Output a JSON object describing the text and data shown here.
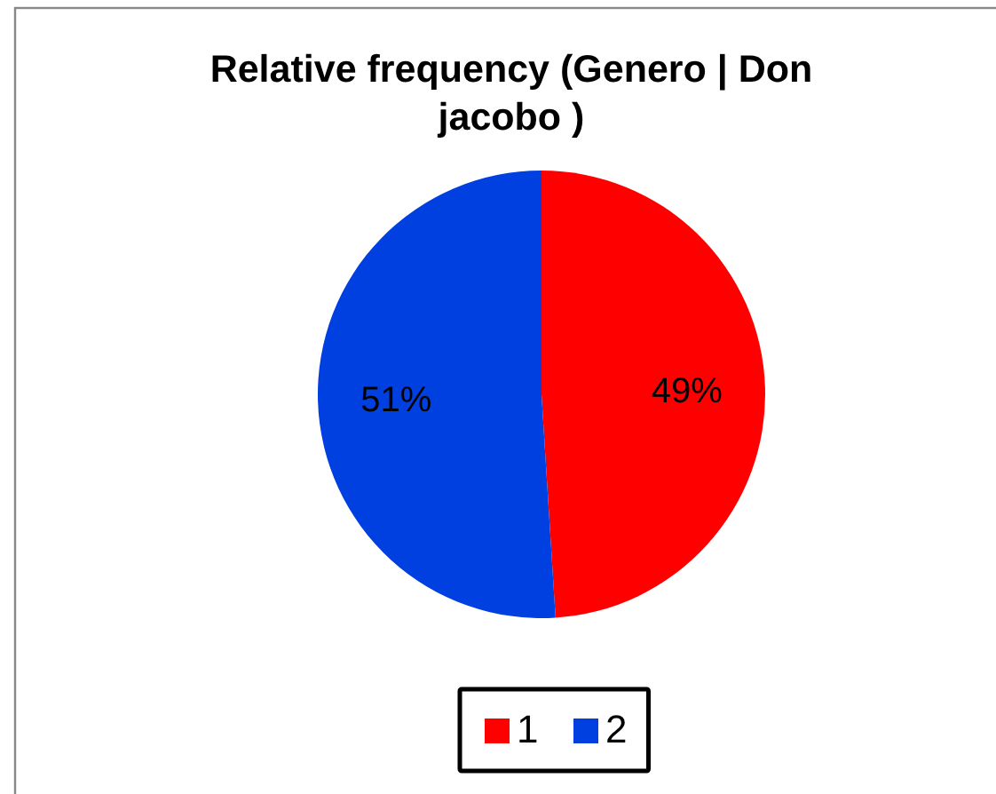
{
  "chart_data": {
    "type": "pie",
    "title": "Relative frequency (Genero | Don jacobo )",
    "categories": [
      "1",
      "2"
    ],
    "values": [
      49,
      51
    ],
    "colors": [
      "#ff0000",
      "#0040e0"
    ],
    "value_labels": [
      "49%",
      "51%"
    ],
    "legend": "bottom"
  }
}
